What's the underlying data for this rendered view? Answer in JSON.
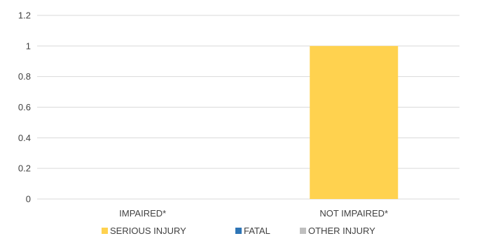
{
  "chart_data": {
    "type": "bar",
    "categories": [
      "IMPAIRED*",
      "NOT IMPAIRED*"
    ],
    "series": [
      {
        "name": "SERIOUS INJURY",
        "values": [
          0,
          1
        ],
        "color": "#FFD24F"
      },
      {
        "name": "FATAL",
        "values": [
          0,
          0
        ],
        "color": "#2E75B6"
      },
      {
        "name": "OTHER INJURY",
        "values": [
          0,
          0
        ],
        "color": "#BFBFBF"
      }
    ],
    "ylim": [
      0,
      1.2
    ],
    "yticks": [
      "0",
      "0.2",
      "0.4",
      "0.6",
      "0.8",
      "1",
      "1.2"
    ],
    "grid": true,
    "legend_position": "bottom",
    "title": "",
    "xlabel": "",
    "ylabel": ""
  }
}
